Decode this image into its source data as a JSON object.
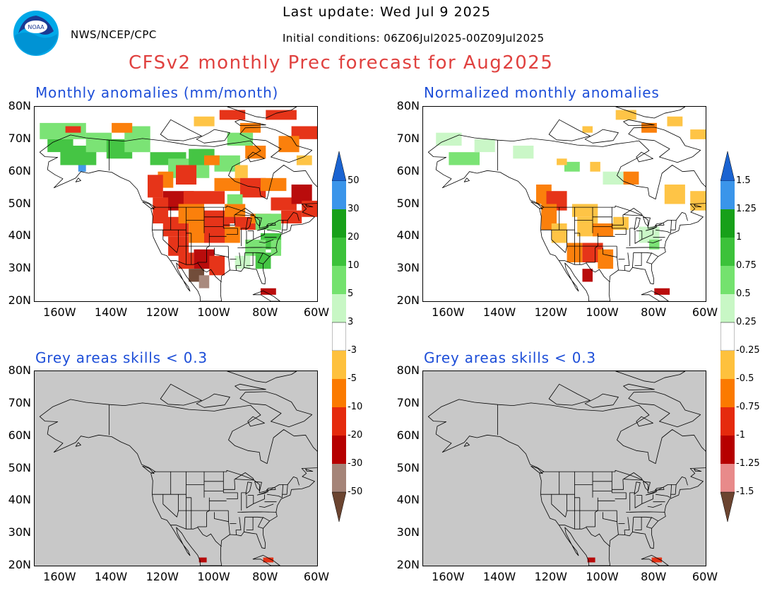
{
  "header": {
    "org": "NWS/NCEP/CPC",
    "last_update": "Last update: Wed Jul 9 2025",
    "initial_conditions": "Initial conditions: 06Z06Jul2025-00Z09Jul2025",
    "title": "CFSv2 monthly Prec forecast for Aug2025"
  },
  "colors": {
    "title": "#e0413f",
    "panel_title": "#1d4ed8",
    "skill_mask_grey": "#c8c8c8",
    "positive": [
      "#c8f7c5",
      "#74e26e",
      "#3cc23a",
      "#17a019",
      "#3a95ea",
      "#1a63d1"
    ],
    "negative": [
      "#fec13d",
      "#fb7a00",
      "#e52a0d",
      "#b60000",
      "#a58478",
      "#6b4430"
    ]
  },
  "axes": {
    "lat_labels": [
      "80N",
      "70N",
      "60N",
      "50N",
      "40N",
      "30N",
      "20N"
    ],
    "lon_labels": [
      "160W",
      "140W",
      "120W",
      "100W",
      "80W",
      "60W"
    ],
    "lon_range": [
      -170,
      -60
    ],
    "lat_range": [
      20,
      80
    ]
  },
  "panels": [
    {
      "id": "anomaly",
      "title": "Monthly anomalies (mm/month)",
      "type": "anomaly"
    },
    {
      "id": "normalized",
      "title": "Normalized monthly anomalies",
      "type": "anomaly"
    },
    {
      "id": "skill-left",
      "title": "Grey areas skills < 0.3",
      "type": "skill"
    },
    {
      "id": "skill-right",
      "title": "Grey areas skills < 0.3",
      "type": "skill"
    }
  ],
  "colorbars": {
    "left": {
      "labels": [
        "50",
        "30",
        "20",
        "10",
        "5",
        "3",
        "-3",
        "-5",
        "-10",
        "-20",
        "-30",
        "-50"
      ]
    },
    "right": {
      "labels": [
        "1.5",
        "1.25",
        "1",
        "0.75",
        "0.5",
        "0.25",
        "-0.25",
        "-0.5",
        "-0.75",
        "-1",
        "-1.25",
        "-1.5"
      ]
    }
  }
}
